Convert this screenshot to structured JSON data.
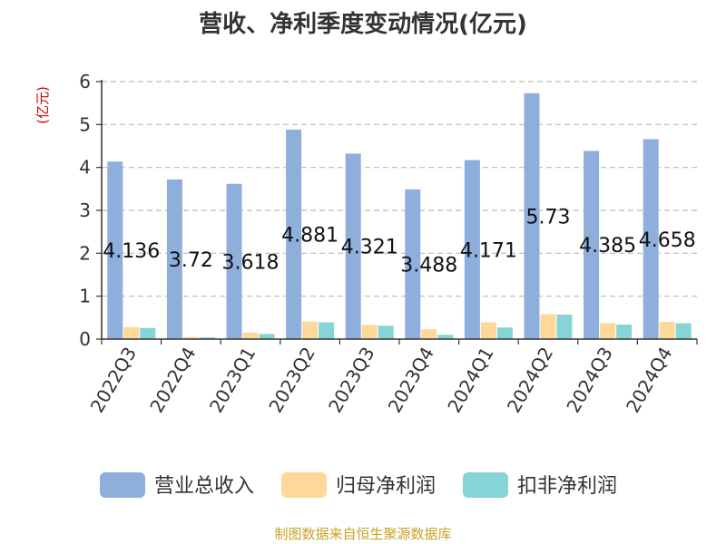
{
  "chart_data": {
    "type": "bar",
    "title": "营收、净利季度变动情况(亿元)",
    "ylabel": "(亿元)",
    "ylim": [
      0,
      6
    ],
    "yticks": [
      0,
      1,
      2,
      3,
      4,
      5,
      6
    ],
    "grid": true,
    "legend_position": "bottom",
    "categories": [
      "2022Q3",
      "2022Q4",
      "2023Q1",
      "2023Q2",
      "2023Q3",
      "2023Q4",
      "2024Q1",
      "2024Q2",
      "2024Q3",
      "2024Q4"
    ],
    "series": [
      {
        "name": "营业总收入",
        "color": "#8eaedb",
        "values": [
          4.136,
          3.72,
          3.618,
          4.881,
          4.321,
          3.488,
          4.171,
          5.73,
          4.385,
          4.658
        ],
        "labels": [
          "4.136",
          "3.72",
          "3.618",
          "4.881",
          "4.321",
          "3.488",
          "4.171",
          "5.73",
          "4.385",
          "4.658"
        ]
      },
      {
        "name": "归母净利润",
        "color": "#fed898",
        "values": [
          0.28,
          0.05,
          0.15,
          0.41,
          0.33,
          0.23,
          0.39,
          0.58,
          0.37,
          0.4
        ]
      },
      {
        "name": "扣非净利润",
        "color": "#86d4d6",
        "values": [
          0.26,
          0.04,
          0.12,
          0.39,
          0.31,
          0.1,
          0.27,
          0.57,
          0.34,
          0.37
        ]
      }
    ]
  },
  "source_note": "制图数据来自恒生聚源数据库"
}
